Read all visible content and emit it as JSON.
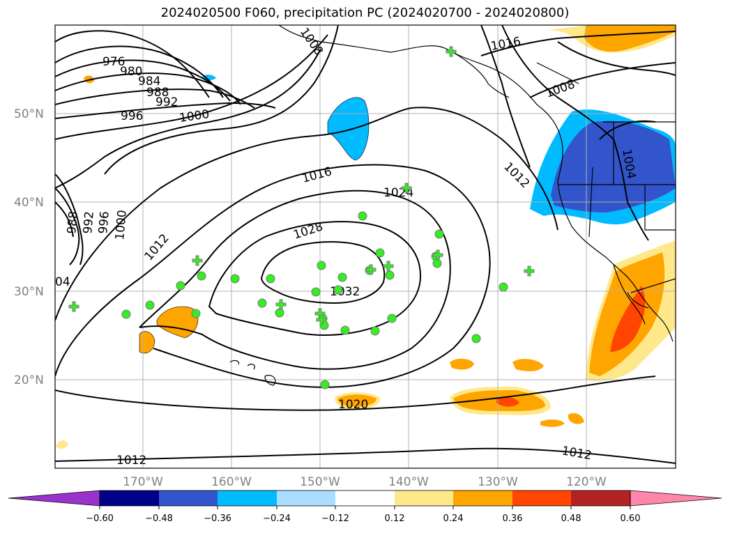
{
  "title": "2024020500 F060, precipitation PC (2024020700 - 2024020800)",
  "colors": {
    "contour": "#000000",
    "coast": "#000000",
    "grid": "#b0b0b0",
    "marker_fill": "#33ee22",
    "marker_edge": "#777777"
  },
  "lat_labels": [
    "50°N",
    "40°N",
    "30°N",
    "20°N"
  ],
  "lon_labels": [
    "170°W",
    "160°W",
    "150°W",
    "140°W",
    "130°W",
    "120°W"
  ],
  "pressure_labels": [
    "976",
    "980",
    "984",
    "988",
    "992",
    "996",
    "1000",
    "1008",
    "1016",
    "1008",
    "1012",
    "1016",
    "1004",
    "1024",
    "1028",
    "988",
    "992",
    "996",
    "1000",
    "1012",
    "04",
    "1032",
    "1020",
    "1012",
    "1012"
  ],
  "colorbar": {
    "ticks": [
      "−0.60",
      "−0.48",
      "−0.36",
      "−0.24",
      "−0.12",
      "0.12",
      "0.24",
      "0.36",
      "0.48",
      "0.60"
    ],
    "colors": [
      "#9933cc",
      "#000088",
      "#3355cc",
      "#00bbff",
      "#aaddff",
      "#ffffff",
      "#ffe88a",
      "#ffa500",
      "#ff4500",
      "#b22222",
      "#ff88aa"
    ]
  }
}
